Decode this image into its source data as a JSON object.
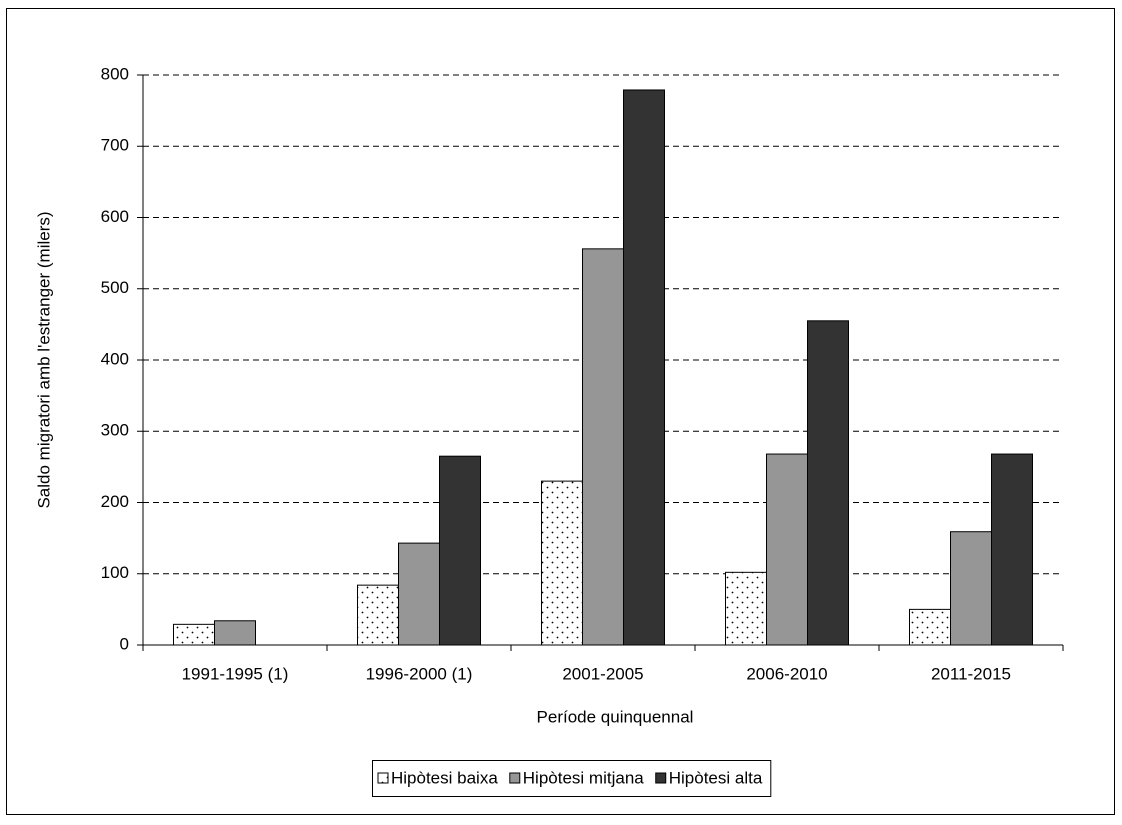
{
  "chart_data": {
    "type": "bar",
    "x_label": "Període quinquennal",
    "y_label": "Saldo migratori amb l'estranger (milers)",
    "categories": [
      "1991-1995 (1)",
      "1996-2000 (1)",
      "2001-2005",
      "2006-2010",
      "2011-2015"
    ],
    "series": [
      {
        "name": "Hipòtesi baixa",
        "color": "#ffffff",
        "pattern": "dots",
        "values": [
          29,
          84,
          230,
          102,
          50
        ]
      },
      {
        "name": "Hipòtesi mitjana",
        "color": "#969696",
        "values": [
          34,
          143,
          556,
          268,
          159
        ]
      },
      {
        "name": "Hipòtesi alta",
        "color": "#333333",
        "values": [
          null,
          265,
          779,
          455,
          268
        ]
      }
    ],
    "ylim": [
      0,
      800
    ],
    "yticks": [
      0,
      100,
      200,
      300,
      400,
      500,
      600,
      700,
      800
    ],
    "grid": true,
    "legend": "bottom"
  }
}
